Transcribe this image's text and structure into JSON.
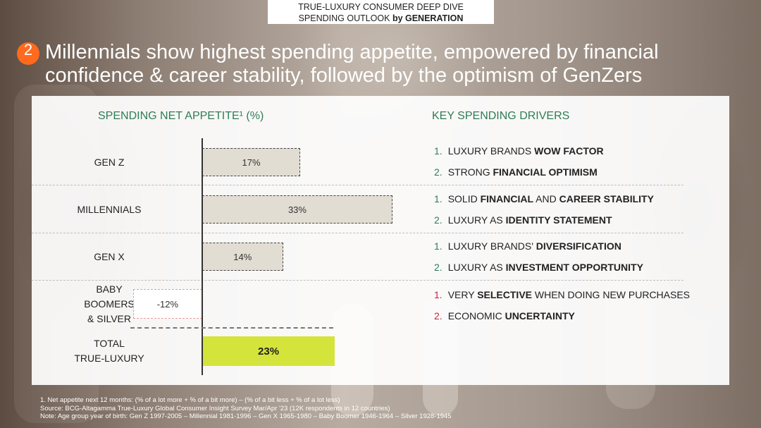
{
  "header": {
    "line1": "TRUE-LUXURY CONSUMER DEEP DIVE",
    "line2_a": "SPENDING OUTLOOK ",
    "line2_b": "by GENERATION"
  },
  "badge": "2",
  "headline": "Millennials show highest spending appetite, empowered by financial confidence & career stability, followed by the optimism of GenZers",
  "left_title": "SPENDING NET APPETITE¹ (%)",
  "right_title": "KEY SPENDING DRIVERS",
  "chart_data": {
    "type": "bar",
    "orientation": "horizontal",
    "title": "SPENDING NET APPETITE¹ (%)",
    "categories": [
      "GEN Z",
      "MILLENNIALS",
      "GEN X",
      "BABY BOOMERS & SILVER",
      "TOTAL TRUE-LUXURY"
    ],
    "category_lines": [
      [
        "GEN Z"
      ],
      [
        "MILLENNIALS"
      ],
      [
        "GEN X"
      ],
      [
        "BABY",
        "BOOMERS",
        "& SILVER"
      ],
      [
        "TOTAL",
        "TRUE-LUXURY"
      ]
    ],
    "values": [
      17,
      33,
      14,
      -12,
      23
    ],
    "labels": [
      "17%",
      "33%",
      "14%",
      "-12%",
      "23%"
    ],
    "unit": "%",
    "colors": {
      "positive": "#e2ddd3",
      "negative": "#ffffff",
      "total": "#d4e43a"
    }
  },
  "drivers": [
    [
      {
        "num": "1.",
        "pre": "LUXURY BRANDS ",
        "bold": "WOW FACTOR",
        "post": ""
      },
      {
        "num": "2.",
        "pre": "STRONG ",
        "bold": "FINANCIAL OPTIMISM",
        "post": ""
      }
    ],
    [
      {
        "num": "1.",
        "pre": "SOLID ",
        "bold": "FINANCIAL",
        "post": " AND ",
        "bold2": "CAREER STABILITY"
      },
      {
        "num": "2.",
        "pre": "LUXURY AS ",
        "bold": "IDENTITY STATEMENT",
        "post": ""
      }
    ],
    [
      {
        "num": "1.",
        "pre": "LUXURY BRANDS' ",
        "bold": "DIVERSIFICATION",
        "post": ""
      },
      {
        "num": "2.",
        "pre": "LUXURY AS ",
        "bold": "INVESTMENT OPPORTUNITY",
        "post": ""
      }
    ],
    [
      {
        "num": "1.",
        "pre": "VERY ",
        "bold": "SELECTIVE",
        "post": " WHEN DOING NEW PURCHASES",
        "red": true
      },
      {
        "num": "2.",
        "pre": "ECONOMIC ",
        "bold": "UNCERTAINTY",
        "post": "",
        "red": true
      }
    ]
  ],
  "footnotes": [
    "1. Net appetite next 12 months: (% of a lot more + % of a bit more) – (% of a bit less + % of a lot less)",
    "Source: BCG-Altagamma True-Luxury Global Consumer Insight Survey Mar/Apr '23 (12K respondents in 12 countries)",
    "Note: Age group year of birth: Gen Z 1997-2005 – Millennial 1981-1996 – Gen X 1965-1980 – Baby Boomer 1946-1964 – Silver 1928-1945"
  ]
}
